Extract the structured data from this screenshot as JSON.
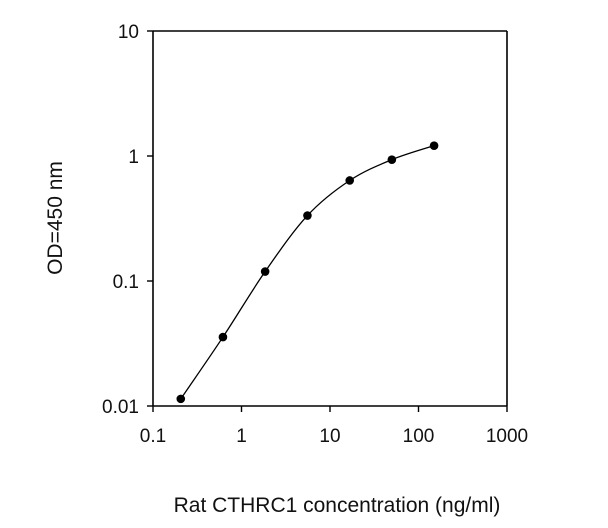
{
  "chart_data": {
    "type": "line",
    "title": "",
    "xlabel": "Rat CTHRC1 concentration (ng/ml)",
    "ylabel": "OD=450 nm",
    "xscale": "log",
    "yscale": "log",
    "xlim": [
      0.1,
      1000
    ],
    "ylim": [
      0.01,
      10
    ],
    "x_ticks": [
      "0.1",
      "1",
      "10",
      "100",
      "1000"
    ],
    "y_ticks": [
      "0.01",
      "0.1",
      "1",
      "10"
    ],
    "grid": false,
    "legend": "none",
    "marker": "filled-circle",
    "line_color": "#000000",
    "series": [
      {
        "x": [
          0.206,
          0.617,
          1.85,
          5.56,
          16.7,
          50,
          150
        ],
        "y": [
          0.0114,
          0.0356,
          0.119,
          0.334,
          0.637,
          0.935,
          1.21
        ]
      }
    ]
  }
}
